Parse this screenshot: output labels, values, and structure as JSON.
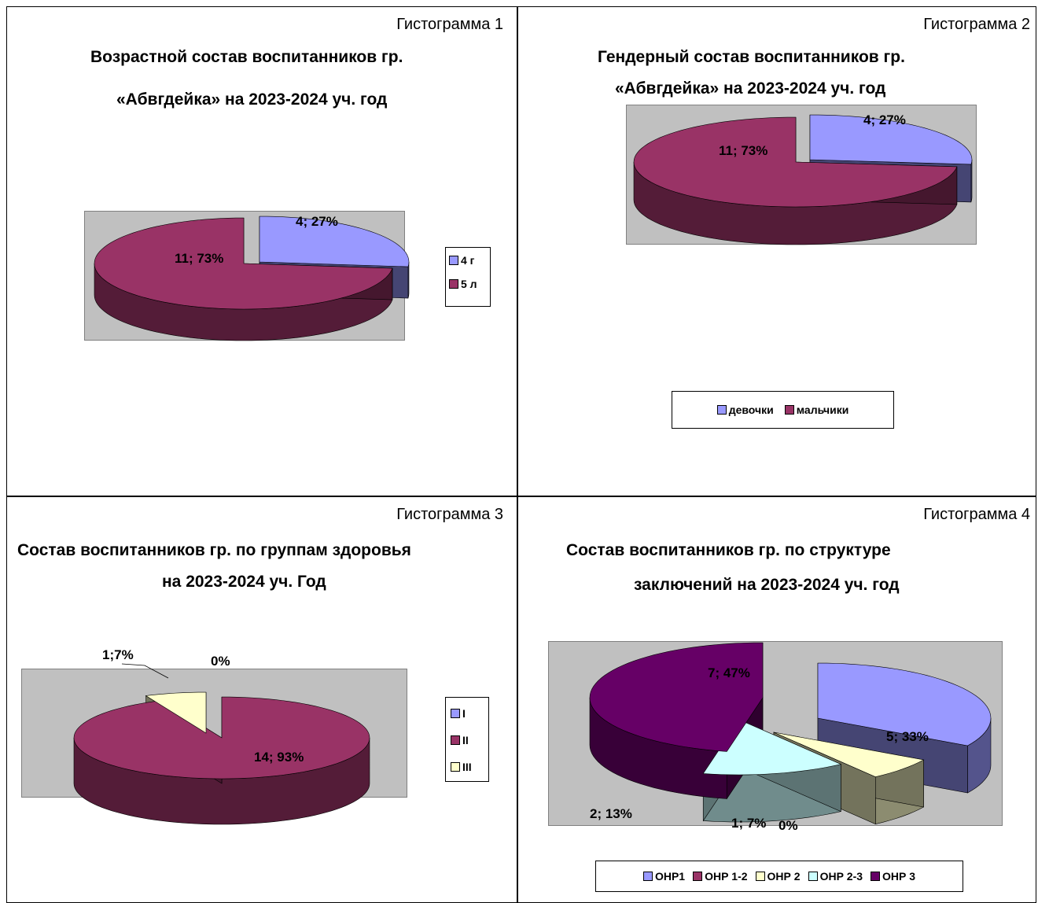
{
  "panels": [
    {
      "caption": "Гистограмма 1",
      "title1": "Возрастной состав воспитанников гр.",
      "title2": "«Абвгдейка» на 2023-2024 уч. год"
    },
    {
      "caption": "Гистограмма 2",
      "title1": "Гендерный состав воспитанников  гр.",
      "title2": "«Абвгдейка» на 2023-2024 уч. год"
    },
    {
      "caption": "Гистограмма 3",
      "title1": "Состав воспитанников гр. по группам здоровья",
      "title2": "на 2023-2024 уч. Год"
    },
    {
      "caption": "Гистограмма 4",
      "title1": "Состав воспитанников гр. по структуре",
      "title2": "заключений  на 2023-2024 уч. год"
    }
  ],
  "chart_data": [
    {
      "type": "pie",
      "title": "Возрастной состав воспитанников гр. «Абвгдейка» на 2023-2024 уч. год",
      "categories": [
        "4 г",
        "5 л"
      ],
      "values": [
        4,
        11
      ],
      "data_labels": [
        "4; 27%",
        "11; 73%"
      ],
      "colors": [
        "#9999ff",
        "#993366"
      ],
      "legend": "right"
    },
    {
      "type": "pie",
      "title": "Гендерный состав воспитанников  гр. «Абвгдейка» на 2023-2024 уч. год",
      "categories": [
        "девочки",
        "мальчики"
      ],
      "values": [
        4,
        11
      ],
      "data_labels": [
        "4; 27%",
        "11; 73%"
      ],
      "colors": [
        "#9999ff",
        "#993366"
      ],
      "legend": "bottom"
    },
    {
      "type": "pie",
      "title": "Состав воспитанников гр. по группам здоровья на 2023-2024 уч. Год",
      "categories": [
        "I",
        "II",
        "III"
      ],
      "values": [
        0,
        14,
        1
      ],
      "data_labels": [
        "0%",
        "14; 93%",
        "1;7%"
      ],
      "colors": [
        "#9999ff",
        "#993366",
        "#ffffcc"
      ],
      "legend": "right"
    },
    {
      "type": "pie",
      "title": "Состав воспитанников гр. по структуре заключений  на 2023-2024 уч. год",
      "categories": [
        "ОНР1",
        "ОНР 1-2",
        "ОНР 2",
        "ОНР 2-3",
        "ОНР 3"
      ],
      "values": [
        5,
        0,
        1,
        2,
        7
      ],
      "data_labels": [
        "5; 33%",
        "0%",
        "1; 7%",
        "2; 13%",
        "7; 47%"
      ],
      "colors": [
        "#9999ff",
        "#993366",
        "#ffffcc",
        "#ccffff",
        "#660066"
      ],
      "legend": "bottom"
    }
  ]
}
